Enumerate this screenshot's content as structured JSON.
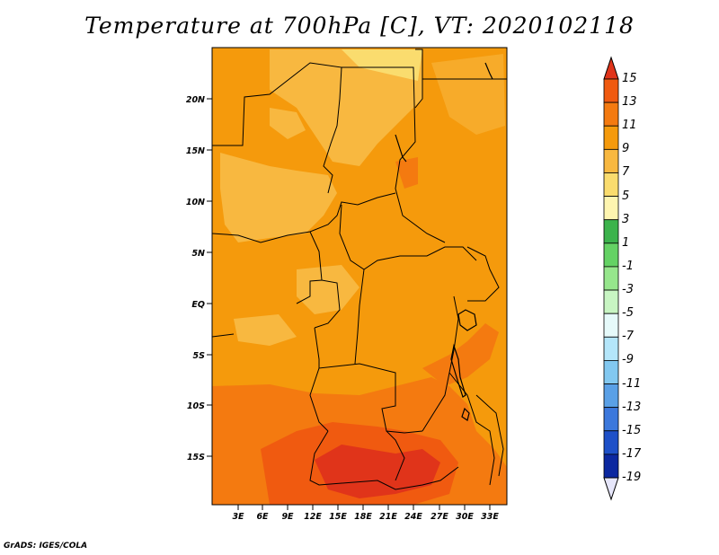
{
  "title": "Temperature at 700hPa [C], VT: 2020102118",
  "footer": "GrADS: IGES/COLA",
  "map": {
    "lat_ticks": [
      "20N",
      "15N",
      "10N",
      "5N",
      "EQ",
      "5S",
      "10S",
      "15S"
    ],
    "lon_ticks": [
      "3E",
      "6E",
      "9E",
      "12E",
      "15E",
      "18E",
      "21E",
      "24E",
      "27E",
      "30E",
      "33E"
    ],
    "background_color": "#f59a0c"
  },
  "colorbar": {
    "labels": [
      "15",
      "13",
      "11",
      "9",
      "7",
      "5",
      "3",
      "1",
      "-1",
      "-3",
      "-5",
      "-7",
      "-9",
      "-11",
      "-13",
      "-15",
      "-17",
      "-19"
    ],
    "top_arrow_color": "#e0341a",
    "bottom_arrow_color": "#e6e6fa",
    "colors": [
      "#e0341a",
      "#f05a10",
      "#f47a10",
      "#f59a0c",
      "#f8b840",
      "#fadc6e",
      "#fef5b0",
      "#3cb34c",
      "#64d264",
      "#96e68c",
      "#c8f5c3",
      "#e6fafa",
      "#b4e6fa",
      "#82c8f0",
      "#5aa0e6",
      "#3c78dc",
      "#1e50c8",
      "#0c28a0",
      "#0a0a78"
    ]
  }
}
